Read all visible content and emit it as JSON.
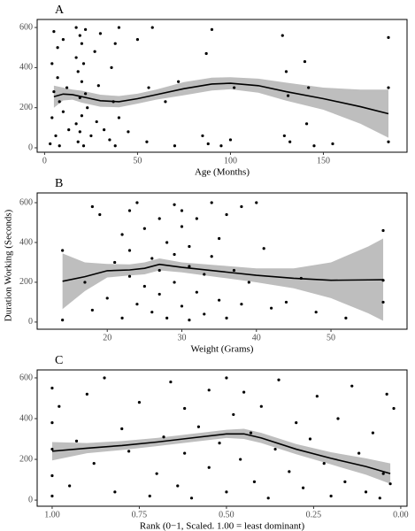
{
  "y_label": "Duration Working (Seconds)",
  "chart_data": [
    {
      "type": "scatter",
      "title": "A",
      "x_label": "Age (Months)",
      "xlim": [
        -4,
        195
      ],
      "xticks": [
        0,
        50,
        100,
        150
      ],
      "ylim": [
        -22,
        640
      ],
      "yticks": [
        0,
        200,
        400,
        600
      ],
      "point_color": "#000000",
      "line_color": "#000000",
      "band_color": "#bebebe",
      "points": {
        "x": [
          3,
          4,
          4,
          5,
          5,
          6,
          7,
          7,
          8,
          8,
          10,
          10,
          12,
          13,
          17,
          17,
          17,
          18,
          18,
          19,
          19,
          19,
          20,
          20,
          20,
          21,
          21,
          22,
          22,
          23,
          25,
          27,
          28,
          29,
          30,
          32,
          35,
          36,
          37,
          38,
          38,
          40,
          40,
          45,
          50,
          55,
          56,
          58,
          65,
          70,
          72,
          85,
          87,
          88,
          90,
          95,
          100,
          102,
          128,
          129,
          130,
          131,
          132,
          140,
          141,
          142,
          145,
          155,
          185,
          185,
          185
        ],
        "y": [
          20,
          150,
          420,
          580,
          280,
          60,
          350,
          500,
          230,
          10,
          540,
          180,
          300,
          90,
          600,
          450,
          120,
          30,
          380,
          560,
          250,
          80,
          520,
          330,
          160,
          420,
          10,
          270,
          590,
          200,
          60,
          480,
          130,
          310,
          570,
          90,
          40,
          400,
          230,
          520,
          10,
          150,
          600,
          80,
          540,
          30,
          300,
          600,
          230,
          10,
          330,
          60,
          470,
          20,
          590,
          10,
          40,
          300,
          560,
          60,
          380,
          260,
          30,
          430,
          120,
          300,
          10,
          20,
          550,
          300,
          30
        ]
      },
      "smooth": {
        "x": [
          5,
          10,
          15,
          20,
          30,
          40,
          50,
          60,
          75,
          90,
          100,
          115,
          130,
          150,
          170,
          185
        ],
        "y": [
          255,
          268,
          265,
          255,
          235,
          230,
          245,
          265,
          295,
          318,
          322,
          310,
          280,
          245,
          205,
          170
        ],
        "upper": [
          310,
          300,
          290,
          285,
          265,
          258,
          270,
          290,
          328,
          350,
          352,
          345,
          325,
          300,
          290,
          290
        ],
        "lower": [
          200,
          236,
          240,
          225,
          205,
          202,
          220,
          240,
          262,
          286,
          292,
          275,
          235,
          190,
          120,
          50
        ]
      }
    },
    {
      "type": "scatter",
      "title": "B",
      "x_label": "Weight (Grams)",
      "xlim": [
        10.6,
        60.2
      ],
      "xticks": [
        20,
        30,
        40,
        50
      ],
      "ylim": [
        -36,
        649
      ],
      "yticks": [
        0,
        200,
        400,
        600
      ],
      "point_color": "#000000",
      "line_color": "#000000",
      "band_color": "#bebebe",
      "points": {
        "x": [
          14,
          14,
          17,
          18,
          18,
          19,
          20,
          21,
          22,
          22,
          23,
          23,
          23,
          24,
          24,
          25,
          25,
          26,
          26,
          27,
          27,
          27,
          28,
          28,
          29,
          29,
          29,
          30,
          30,
          30,
          31,
          31,
          31,
          32,
          32,
          33,
          33,
          34,
          34,
          35,
          35,
          36,
          36,
          37,
          38,
          38,
          39,
          40,
          41,
          42,
          44,
          46,
          48,
          52,
          57,
          57,
          57
        ],
        "y": [
          360,
          10,
          200,
          580,
          60,
          540,
          120,
          300,
          440,
          20,
          560,
          360,
          230,
          90,
          600,
          180,
          470,
          320,
          50,
          520,
          260,
          140,
          400,
          20,
          590,
          340,
          200,
          80,
          480,
          560,
          280,
          10,
          380,
          150,
          520,
          240,
          40,
          600,
          330,
          110,
          420,
          540,
          20,
          260,
          580,
          90,
          200,
          600,
          370,
          70,
          100,
          220,
          50,
          20,
          460,
          210,
          100
        ]
      },
      "smooth": {
        "x": [
          14,
          17,
          20,
          23,
          25,
          27,
          30,
          35,
          40,
          45,
          50,
          55,
          57
        ],
        "y": [
          205,
          228,
          258,
          262,
          270,
          290,
          275,
          255,
          235,
          220,
          210,
          212,
          213
        ],
        "upper": [
          345,
          300,
          292,
          290,
          300,
          320,
          300,
          285,
          270,
          270,
          300,
          380,
          420
        ],
        "lower": [
          65,
          156,
          224,
          234,
          240,
          260,
          250,
          225,
          200,
          170,
          120,
          44,
          6
        ]
      }
    },
    {
      "type": "scatter",
      "title": "C",
      "x_label": "Rank (0−1, Scaled. 1.00 = least dominant)",
      "xlim": [
        1.043,
        -0.018
      ],
      "xticks": [
        {
          "value": 1,
          "label": "1.00"
        },
        {
          "value": 0.75,
          "label": "0.75"
        },
        {
          "value": 0.5,
          "label": "0.50"
        },
        {
          "value": 0.25,
          "label": "0.25"
        },
        {
          "value": 0,
          "label": "0.00"
        }
      ],
      "ylim": [
        -30,
        639
      ],
      "yticks": [
        0,
        200,
        400,
        600
      ],
      "point_color": "#000000",
      "line_color": "#000000",
      "band_color": "#bebebe",
      "points": {
        "x": [
          1.0,
          1.0,
          1.0,
          1.0,
          1.0,
          0.98,
          0.95,
          0.93,
          0.9,
          0.88,
          0.85,
          0.82,
          0.8,
          0.78,
          0.75,
          0.72,
          0.7,
          0.68,
          0.66,
          0.64,
          0.62,
          0.62,
          0.6,
          0.58,
          0.55,
          0.55,
          0.52,
          0.5,
          0.5,
          0.48,
          0.46,
          0.45,
          0.43,
          0.42,
          0.4,
          0.38,
          0.36,
          0.35,
          0.32,
          0.3,
          0.28,
          0.26,
          0.24,
          0.22,
          0.2,
          0.18,
          0.16,
          0.14,
          0.12,
          0.1,
          0.08,
          0.06,
          0.05,
          0.04,
          0.03,
          0.02
        ],
        "y": [
          20,
          120,
          250,
          380,
          550,
          460,
          70,
          290,
          520,
          180,
          600,
          40,
          350,
          240,
          480,
          20,
          130,
          310,
          580,
          70,
          230,
          450,
          10,
          360,
          160,
          540,
          280,
          600,
          40,
          420,
          200,
          530,
          330,
          90,
          460,
          10,
          250,
          590,
          140,
          380,
          60,
          300,
          510,
          180,
          20,
          400,
          90,
          560,
          230,
          40,
          330,
          10,
          130,
          520,
          80,
          450
        ]
      },
      "smooth": {
        "x": [
          1.0,
          0.9,
          0.8,
          0.7,
          0.6,
          0.5,
          0.45,
          0.4,
          0.3,
          0.2,
          0.1,
          0.03
        ],
        "y": [
          240,
          255,
          268,
          285,
          305,
          325,
          325,
          305,
          250,
          205,
          165,
          130
        ],
        "upper": [
          285,
          280,
          290,
          305,
          325,
          345,
          350,
          330,
          275,
          235,
          205,
          180
        ],
        "lower": [
          195,
          230,
          246,
          265,
          285,
          305,
          300,
          280,
          225,
          175,
          125,
          80
        ]
      }
    }
  ]
}
